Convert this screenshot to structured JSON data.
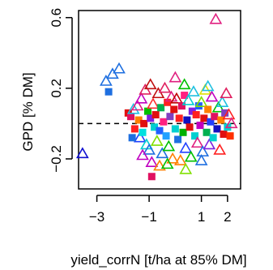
{
  "chart_data": {
    "type": "scatter",
    "xlabel": "yield_corrN [t/ha at 85% DM]",
    "ylabel": "GPD [% DM]",
    "xlim": [
      -3.7,
      2.5
    ],
    "ylim": [
      -0.37,
      0.64
    ],
    "x_ticks": [
      -3,
      -1,
      1,
      2
    ],
    "x_tick_labels": [
      "−3",
      "−1",
      "1",
      "2"
    ],
    "y_ticks": [
      -0.2,
      0.2,
      0.6
    ],
    "y_tick_labels": [
      "−0.2",
      "0.2",
      "0.6"
    ],
    "reference_line": {
      "y": 0,
      "style": "dashed",
      "color": "#000000"
    },
    "grid": false,
    "legend": "none",
    "points": [
      {
        "x": -3.55,
        "y": -0.17,
        "shape": "triangle",
        "color": "#1010d0"
      },
      {
        "x": -2.65,
        "y": 0.24,
        "shape": "triangle",
        "color": "#1e6fe0"
      },
      {
        "x": -2.4,
        "y": 0.28,
        "shape": "triangle",
        "color": "#1e6fe0"
      },
      {
        "x": -2.15,
        "y": 0.31,
        "shape": "triangle",
        "color": "#1e6fe0"
      },
      {
        "x": -2.55,
        "y": 0.18,
        "shape": "square",
        "color": "#1e6fe0"
      },
      {
        "x": -1.8,
        "y": 0.06,
        "shape": "square",
        "color": "#e01010"
      },
      {
        "x": -1.7,
        "y": 0.04,
        "shape": "square",
        "color": "#e01060"
      },
      {
        "x": -1.6,
        "y": 0.08,
        "shape": "triangle",
        "color": "#20c0e0"
      },
      {
        "x": -1.55,
        "y": -0.03,
        "shape": "square",
        "color": "#ff2020"
      },
      {
        "x": -1.45,
        "y": 0.1,
        "shape": "triangle",
        "color": "#e02080"
      },
      {
        "x": -1.4,
        "y": 0.02,
        "shape": "square",
        "color": "#ff8000"
      },
      {
        "x": -1.35,
        "y": -0.08,
        "shape": "triangle",
        "color": "#2040ff"
      },
      {
        "x": -1.3,
        "y": 0.14,
        "shape": "triangle",
        "color": "#c000c0"
      },
      {
        "x": -1.25,
        "y": -0.05,
        "shape": "square",
        "color": "#00e0e0"
      },
      {
        "x": -1.2,
        "y": 0.0,
        "shape": "square",
        "color": "#e01010"
      },
      {
        "x": -1.15,
        "y": 0.19,
        "shape": "triangle",
        "color": "#e02060"
      },
      {
        "x": -1.1,
        "y": -0.12,
        "shape": "triangle",
        "color": "#00d0d0"
      },
      {
        "x": -1.05,
        "y": 0.07,
        "shape": "square",
        "color": "#00c000"
      },
      {
        "x": -1.0,
        "y": -0.15,
        "shape": "triangle",
        "color": "#1e6fe0"
      },
      {
        "x": -0.95,
        "y": 0.03,
        "shape": "square",
        "color": "#8020e0"
      },
      {
        "x": -0.9,
        "y": -0.22,
        "shape": "triangle",
        "color": "#c000c0"
      },
      {
        "x": -0.9,
        "y": -0.3,
        "shape": "square",
        "color": "#e01060"
      },
      {
        "x": -0.85,
        "y": 0.11,
        "shape": "triangle",
        "color": "#ff3030"
      },
      {
        "x": -0.8,
        "y": -0.02,
        "shape": "square",
        "color": "#00d0d0"
      },
      {
        "x": -0.75,
        "y": 0.05,
        "shape": "square",
        "color": "#e01010"
      },
      {
        "x": -0.7,
        "y": -0.1,
        "shape": "triangle",
        "color": "#80e000"
      },
      {
        "x": -0.65,
        "y": 0.17,
        "shape": "triangle",
        "color": "#c01010"
      },
      {
        "x": -0.6,
        "y": -0.04,
        "shape": "square",
        "color": "#2060ff"
      },
      {
        "x": -0.55,
        "y": 0.09,
        "shape": "square",
        "color": "#00b050"
      },
      {
        "x": -0.5,
        "y": -0.17,
        "shape": "triangle",
        "color": "#1e6fe0"
      },
      {
        "x": -0.45,
        "y": 0.01,
        "shape": "square",
        "color": "#ff2080"
      },
      {
        "x": -0.4,
        "y": 0.2,
        "shape": "triangle",
        "color": "#e02060"
      },
      {
        "x": -0.35,
        "y": -0.07,
        "shape": "square",
        "color": "#20a0ff"
      },
      {
        "x": -0.3,
        "y": 0.12,
        "shape": "square",
        "color": "#ff2020"
      },
      {
        "x": -0.25,
        "y": -0.13,
        "shape": "triangle",
        "color": "#00c000"
      },
      {
        "x": -0.2,
        "y": 0.04,
        "shape": "square",
        "color": "#8040c0"
      },
      {
        "x": -0.15,
        "y": 0.15,
        "shape": "triangle",
        "color": "#e02080"
      },
      {
        "x": -0.1,
        "y": -0.2,
        "shape": "triangle",
        "color": "#ff8000"
      },
      {
        "x": -0.05,
        "y": 0.08,
        "shape": "square",
        "color": "#e01010"
      },
      {
        "x": 0.0,
        "y": -0.03,
        "shape": "square",
        "color": "#00d0d0"
      },
      {
        "x": 0.0,
        "y": 0.26,
        "shape": "triangle",
        "color": "#e02080"
      },
      {
        "x": 0.05,
        "y": 0.14,
        "shape": "triangle",
        "color": "#c00000"
      },
      {
        "x": 0.1,
        "y": -0.09,
        "shape": "square",
        "color": "#1e6fe0"
      },
      {
        "x": 0.15,
        "y": 0.03,
        "shape": "square",
        "color": "#ff2020"
      },
      {
        "x": 0.2,
        "y": -0.21,
        "shape": "triangle",
        "color": "#ff8000"
      },
      {
        "x": 0.25,
        "y": 0.1,
        "shape": "square",
        "color": "#e01060"
      },
      {
        "x": 0.3,
        "y": -0.05,
        "shape": "square",
        "color": "#00b000"
      },
      {
        "x": 0.35,
        "y": 0.16,
        "shape": "square",
        "color": "#ff2080"
      },
      {
        "x": 0.4,
        "y": -0.14,
        "shape": "triangle",
        "color": "#2040ff"
      },
      {
        "x": 0.45,
        "y": 0.02,
        "shape": "square",
        "color": "#1010c0"
      },
      {
        "x": 0.5,
        "y": 0.13,
        "shape": "triangle",
        "color": "#00d0d0"
      },
      {
        "x": 0.55,
        "y": -0.02,
        "shape": "square",
        "color": "#e01010"
      },
      {
        "x": 0.6,
        "y": -0.19,
        "shape": "triangle",
        "color": "#00c000"
      },
      {
        "x": 0.65,
        "y": 0.07,
        "shape": "square",
        "color": "#8020e0"
      },
      {
        "x": 0.7,
        "y": 0.18,
        "shape": "triangle",
        "color": "#20c0e0"
      },
      {
        "x": 0.75,
        "y": -0.07,
        "shape": "square",
        "color": "#00d0d0"
      },
      {
        "x": 0.8,
        "y": 0.05,
        "shape": "square",
        "color": "#ff2020"
      },
      {
        "x": 0.85,
        "y": -0.11,
        "shape": "triangle",
        "color": "#e02080"
      },
      {
        "x": 0.9,
        "y": 0.1,
        "shape": "square",
        "color": "#2060ff"
      },
      {
        "x": 0.95,
        "y": -0.01,
        "shape": "square",
        "color": "#c000c0"
      },
      {
        "x": 1.0,
        "y": 0.12,
        "shape": "triangle",
        "color": "#80e000"
      },
      {
        "x": 1.05,
        "y": -0.16,
        "shape": "triangle",
        "color": "#1e6fe0"
      },
      {
        "x": 1.1,
        "y": 0.03,
        "shape": "square",
        "color": "#e01010"
      },
      {
        "x": 1.15,
        "y": 0.19,
        "shape": "triangle",
        "color": "#e0e000"
      },
      {
        "x": 1.2,
        "y": -0.05,
        "shape": "square",
        "color": "#00b050"
      },
      {
        "x": 1.25,
        "y": 0.08,
        "shape": "square",
        "color": "#ff8000"
      },
      {
        "x": 1.3,
        "y": -0.12,
        "shape": "triangle",
        "color": "#8020e0"
      },
      {
        "x": 1.35,
        "y": 0.01,
        "shape": "square",
        "color": "#2040ff"
      },
      {
        "x": 1.4,
        "y": 0.15,
        "shape": "triangle",
        "color": "#c000c0"
      },
      {
        "x": 1.45,
        "y": -0.08,
        "shape": "square",
        "color": "#00d0d0"
      },
      {
        "x": 1.5,
        "y": 0.04,
        "shape": "square",
        "color": "#e01060"
      },
      {
        "x": 1.55,
        "y": 0.59,
        "shape": "triangle",
        "color": "#e02080"
      },
      {
        "x": 1.6,
        "y": -0.03,
        "shape": "square",
        "color": "#1010c0"
      },
      {
        "x": 1.65,
        "y": 0.09,
        "shape": "triangle",
        "color": "#00c000"
      },
      {
        "x": 1.7,
        "y": -0.15,
        "shape": "triangle",
        "color": "#ff2020"
      },
      {
        "x": 1.75,
        "y": 0.02,
        "shape": "square",
        "color": "#ff8000"
      },
      {
        "x": 1.8,
        "y": 0.12,
        "shape": "triangle",
        "color": "#20c0e0"
      },
      {
        "x": 1.85,
        "y": -0.06,
        "shape": "square",
        "color": "#e01010"
      },
      {
        "x": 1.9,
        "y": 0.06,
        "shape": "square",
        "color": "#8040c0"
      },
      {
        "x": 1.95,
        "y": 0.17,
        "shape": "triangle",
        "color": "#e02060"
      },
      {
        "x": 2.0,
        "y": -0.02,
        "shape": "square",
        "color": "#00d0d0"
      },
      {
        "x": 2.05,
        "y": 0.05,
        "shape": "triangle",
        "color": "#ff2020"
      },
      {
        "x": 2.1,
        "y": -0.07,
        "shape": "square",
        "color": "#ff3000"
      },
      {
        "x": 2.15,
        "y": 0.0,
        "shape": "triangle",
        "color": "#e02080"
      },
      {
        "x": -1.25,
        "y": -0.18,
        "shape": "triangle",
        "color": "#c000c0"
      },
      {
        "x": -0.6,
        "y": -0.24,
        "shape": "triangle",
        "color": "#ff8000"
      },
      {
        "x": -0.3,
        "y": -0.23,
        "shape": "triangle",
        "color": "#00c000"
      },
      {
        "x": 0.4,
        "y": -0.26,
        "shape": "triangle",
        "color": "#80e000"
      },
      {
        "x": 1.0,
        "y": -0.21,
        "shape": "triangle",
        "color": "#1e6fe0"
      },
      {
        "x": -1.65,
        "y": -0.08,
        "shape": "square",
        "color": "#1e6fe0"
      },
      {
        "x": -0.95,
        "y": 0.22,
        "shape": "triangle",
        "color": "#c01010"
      },
      {
        "x": 0.35,
        "y": 0.22,
        "shape": "triangle",
        "color": "#00c000"
      },
      {
        "x": 1.25,
        "y": 0.21,
        "shape": "triangle",
        "color": "#20c0e0"
      }
    ]
  }
}
